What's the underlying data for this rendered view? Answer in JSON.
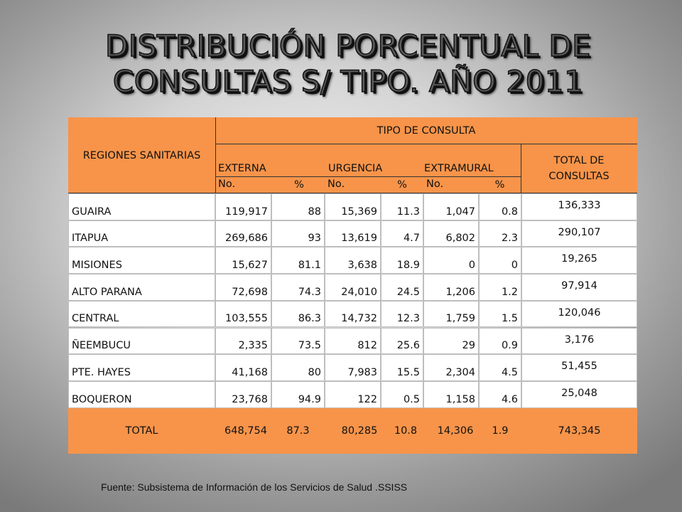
{
  "title": {
    "line1": "DISTRIBUCIÓN PORCENTUAL DE",
    "line2": "CONSULTAS  S/ TIPO. AÑO 2011"
  },
  "table": {
    "header": {
      "regions": "REGIONES SANITARIAS",
      "tipo": "TIPO DE CONSULTA",
      "externa": "EXTERNA",
      "urgencia": "URGENCIA",
      "extramural": "EXTRAMURAL",
      "total_line1": "TOTAL DE",
      "total_line2": "CONSULTAS",
      "no_label": "No.",
      "pct_label": "%"
    },
    "rows": [
      {
        "region": "GUAIRA",
        "ext_no": "119,917",
        "ext_pct": "88",
        "urg_no": "15,369",
        "urg_pct": "11.3",
        "extra_no": "1,047",
        "extra_pct": "0.8",
        "total": "136,333"
      },
      {
        "region": "ITAPUA",
        "ext_no": "269,686",
        "ext_pct": "93",
        "urg_no": "13,619",
        "urg_pct": "4.7",
        "extra_no": "6,802",
        "extra_pct": "2.3",
        "total": "290,107"
      },
      {
        "region": "MISIONES",
        "ext_no": "15,627",
        "ext_pct": "81.1",
        "urg_no": "3,638",
        "urg_pct": "18.9",
        "extra_no": "0",
        "extra_pct": "0",
        "total": "19,265"
      },
      {
        "region": "ALTO PARANA",
        "ext_no": "72,698",
        "ext_pct": "74.3",
        "urg_no": "24,010",
        "urg_pct": "24.5",
        "extra_no": "1,206",
        "extra_pct": "1.2",
        "total": "97,914"
      },
      {
        "region": "CENTRAL",
        "ext_no": "103,555",
        "ext_pct": "86.3",
        "urg_no": "14,732",
        "urg_pct": "12.3",
        "extra_no": "1,759",
        "extra_pct": "1.5",
        "total": "120,046"
      },
      {
        "region": "ÑEEMBUCU",
        "ext_no": "2,335",
        "ext_pct": "73.5",
        "urg_no": "812",
        "urg_pct": "25.6",
        "extra_no": "29",
        "extra_pct": "0.9",
        "total": "3,176"
      },
      {
        "region": "PTE. HAYES",
        "ext_no": "41,168",
        "ext_pct": "80",
        "urg_no": "7,983",
        "urg_pct": "15.5",
        "extra_no": "2,304",
        "extra_pct": "4.5",
        "total": "51,455"
      },
      {
        "region": "BOQUERON",
        "ext_no": "23,768",
        "ext_pct": "94.9",
        "urg_no": "122",
        "urg_pct": "0.5",
        "extra_no": "1,158",
        "extra_pct": "4.6",
        "total": "25,048"
      }
    ],
    "total": {
      "label": "TOTAL",
      "ext_no": "648,754",
      "ext_pct": "87.3",
      "urg_no": "80,285",
      "urg_pct": "10.8",
      "extra_no": "14,306",
      "extra_pct": "1.9",
      "total": "743,345"
    }
  },
  "source": "Fuente: Subsistema de Información de los Servicios de Salud .SSISS",
  "colors": {
    "header_orange": "#f7944a",
    "cell_white": "#ffffff"
  }
}
